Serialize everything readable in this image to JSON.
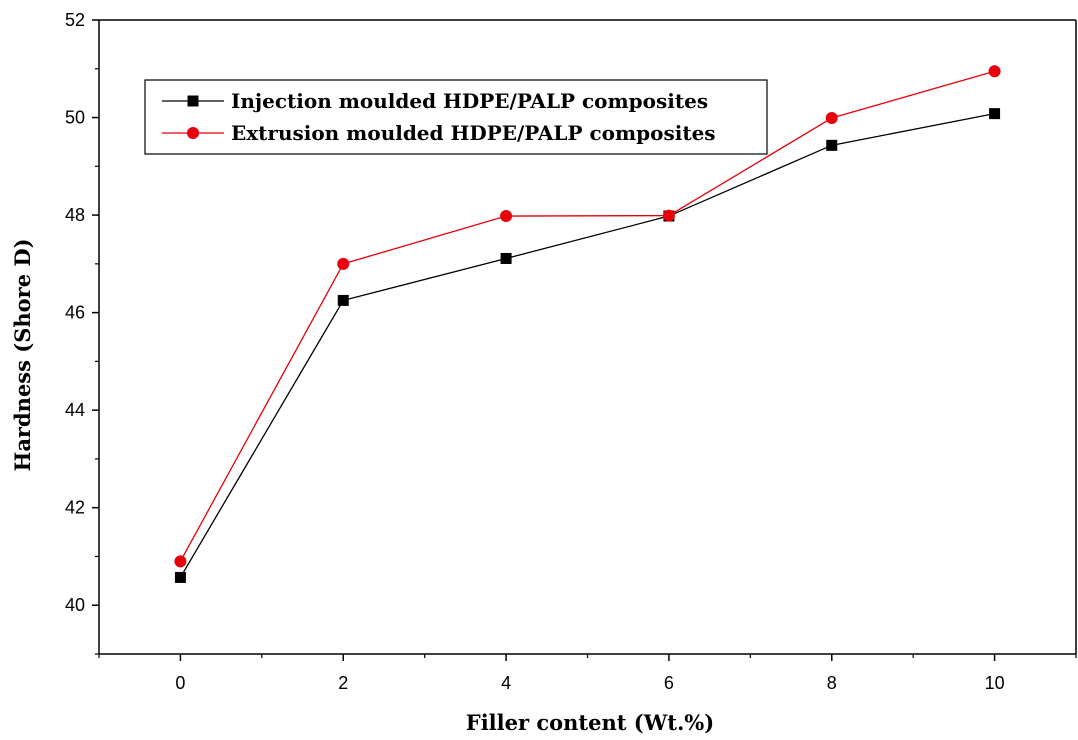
{
  "chart_data": {
    "type": "line",
    "xlabel": "Filler content (Wt.%)",
    "ylabel": "Hardness (Shore D)",
    "xlim": [
      -1,
      11
    ],
    "ylim": [
      39,
      52
    ],
    "x_ticks": [
      0,
      2,
      4,
      6,
      8,
      10
    ],
    "y_ticks": [
      40,
      42,
      44,
      46,
      48,
      50,
      52
    ],
    "grid": false,
    "legend_position": "top-left",
    "x": [
      0,
      2,
      4,
      6,
      8,
      10
    ],
    "series": [
      {
        "name": "Injection moulded HDPE/PALP composites",
        "values": [
          40.57,
          46.25,
          47.11,
          47.98,
          49.43,
          50.08
        ],
        "color": "#000000",
        "marker": "square"
      },
      {
        "name": "Extrusion moulded HDPE/PALP composites",
        "values": [
          40.9,
          47.0,
          47.98,
          47.99,
          49.99,
          50.95
        ],
        "color": "#e8000b",
        "marker": "circle"
      }
    ]
  }
}
